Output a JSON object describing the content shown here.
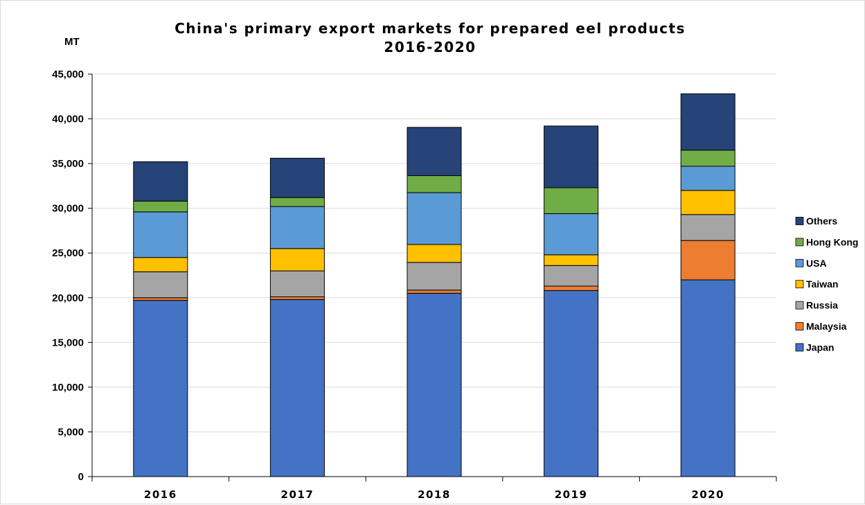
{
  "chart_data": {
    "type": "bar",
    "stacked": true,
    "title_line1": "China's primary export markets for prepared eel products",
    "title_line2": "2016-2020",
    "ylabel": "MT",
    "xlabel": "",
    "ylim": [
      0,
      45000
    ],
    "y_ticks": [
      0,
      5000,
      10000,
      15000,
      20000,
      25000,
      30000,
      35000,
      40000,
      45000
    ],
    "y_tick_labels": [
      "0",
      "5,000",
      "10,000",
      "15,000",
      "20,000",
      "25,000",
      "30,000",
      "35,000",
      "40,000",
      "45,000"
    ],
    "grid": true,
    "legend_position": "right",
    "categories": [
      "2016",
      "2017",
      "2018",
      "2019",
      "2020"
    ],
    "series": [
      {
        "name": "Japan",
        "color": "#4472c4",
        "values": [
          19700,
          19800,
          20500,
          20800,
          22000
        ]
      },
      {
        "name": "Malaysia",
        "color": "#ed7d31",
        "values": [
          300,
          300,
          350,
          500,
          4400
        ]
      },
      {
        "name": "Russia",
        "color": "#a5a5a5",
        "values": [
          2900,
          2900,
          3100,
          2300,
          2900
        ]
      },
      {
        "name": "Taiwan",
        "color": "#ffc000",
        "values": [
          1600,
          2500,
          2000,
          1200,
          2700
        ]
      },
      {
        "name": "USA",
        "color": "#5b9bd5",
        "values": [
          5100,
          4700,
          5800,
          4600,
          2700
        ]
      },
      {
        "name": "Hong Kong",
        "color": "#70ad47",
        "values": [
          1200,
          1000,
          1900,
          2900,
          1800
        ]
      },
      {
        "name": "Others",
        "color": "#264478",
        "values": [
          4400,
          4400,
          5400,
          6900,
          6300
        ]
      }
    ]
  }
}
